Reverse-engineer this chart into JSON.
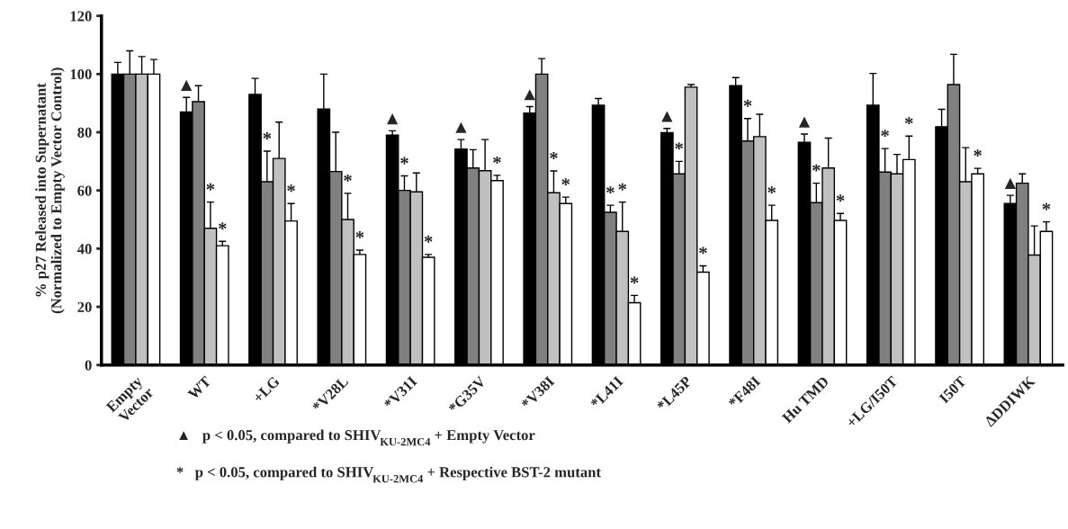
{
  "chart_data": {
    "type": "bar",
    "ylabel": "% p27 Released into Supernatant\n(Normalized to Empty Vector Control)",
    "categories": [
      "Empty\nVector",
      "WT",
      "+LG",
      "*V28L",
      "*V31I",
      "*G35V",
      "*V38I",
      "*L41I",
      "*L45P",
      "*F48I",
      "Hu TMD",
      "+LG/I50T",
      "I50T",
      "ΔDDIWK"
    ],
    "ylim": [
      0,
      120
    ],
    "yticks": [
      0,
      20,
      40,
      60,
      80,
      100,
      120
    ],
    "grid": false,
    "legend": false,
    "series": [
      {
        "color": "#000000",
        "values": [
          100,
          87,
          93,
          88,
          79,
          74.2,
          86.6,
          89.3,
          79.9,
          96,
          76.5,
          89.3,
          81.9,
          55.5
        ],
        "errors": [
          [
            100,
            104
          ],
          [
            87,
            92
          ],
          [
            93,
            98.5
          ],
          [
            88,
            100
          ],
          [
            79,
            80.5
          ],
          [
            74.2,
            77.5
          ],
          [
            86.6,
            88.8
          ],
          [
            89.3,
            91.6
          ],
          [
            79.9,
            81.3
          ],
          [
            96,
            98.8
          ],
          [
            76.5,
            79.4
          ],
          [
            89.3,
            100.2
          ],
          [
            81.9,
            87.9
          ],
          [
            55.5,
            58.3
          ]
        ],
        "value_labels": [
          null,
          "▲",
          null,
          null,
          "▲",
          "▲",
          "▲",
          null,
          "▲",
          null,
          "▲",
          null,
          null,
          "▲"
        ]
      },
      {
        "color": "#808080",
        "values": [
          100,
          90.5,
          63,
          66.5,
          60,
          67.7,
          100,
          52.5,
          65.7,
          77,
          55.8,
          66.3,
          96.4,
          62.5
        ],
        "errors": [
          [
            100,
            108
          ],
          [
            90.5,
            96
          ],
          [
            63,
            73.5
          ],
          [
            66.5,
            80
          ],
          [
            60,
            65
          ],
          [
            67.7,
            74
          ],
          [
            100,
            105.3
          ],
          [
            52.5,
            54.9
          ],
          [
            65.7,
            70
          ],
          [
            77,
            84.7
          ],
          [
            55.8,
            62.5
          ],
          [
            66.3,
            74.4
          ],
          [
            96.4,
            106.8
          ],
          [
            62.5,
            65.7
          ]
        ],
        "value_labels": [
          null,
          null,
          "*",
          null,
          "*",
          null,
          null,
          "*",
          "*",
          "*",
          "*",
          "*",
          null,
          null
        ]
      },
      {
        "color": "#c0c0c0",
        "values": [
          100,
          47,
          71,
          50,
          59.5,
          66.8,
          59.2,
          45.9,
          95.5,
          78.5,
          67.7,
          65.7,
          63,
          37.8
        ],
        "errors": [
          [
            100,
            106
          ],
          [
            47,
            56
          ],
          [
            71,
            83.5
          ],
          [
            50,
            59
          ],
          [
            59.5,
            66
          ],
          [
            66.8,
            77.5
          ],
          [
            59.2,
            66.7
          ],
          [
            45.9,
            56
          ],
          [
            95.5,
            96.4
          ],
          [
            78.5,
            86.2
          ],
          [
            67.7,
            78
          ],
          [
            65.7,
            72.4
          ],
          [
            63,
            74.7
          ],
          [
            37.8,
            47.8
          ]
        ],
        "value_labels": [
          null,
          "*",
          null,
          "*",
          null,
          null,
          "*",
          "*",
          null,
          null,
          null,
          null,
          null,
          null
        ]
      },
      {
        "color": "#ffffff",
        "values": [
          100,
          41,
          49.5,
          38,
          37,
          63.4,
          55.5,
          21.4,
          31.9,
          49.7,
          49.7,
          70.6,
          65.7,
          45.9
        ],
        "errors": [
          [
            100,
            105
          ],
          [
            41,
            42.5
          ],
          [
            49.5,
            55.5
          ],
          [
            38,
            39.5
          ],
          [
            37,
            38
          ],
          [
            63.4,
            65.2
          ],
          [
            55.5,
            57.7
          ],
          [
            21.4,
            23.9
          ],
          [
            31.9,
            34.1
          ],
          [
            49.7,
            54.9
          ],
          [
            49.7,
            52.1
          ],
          [
            70.6,
            78.7
          ],
          [
            65.7,
            67.6
          ],
          [
            45.9,
            49.2
          ]
        ],
        "value_labels": [
          null,
          "*",
          "*",
          "*",
          "*",
          "*",
          "*",
          "*",
          "*",
          "*",
          "*",
          "*",
          "*",
          "*"
        ]
      }
    ],
    "annotations": [
      "▲   p < 0.05, compared to SHIV$_{KU-2MC4}$ + Empty Vector",
      "*   p < 0.05, compared to SHIV$_{KU-2MC4}$ + Respective BST-2 mutant"
    ]
  }
}
